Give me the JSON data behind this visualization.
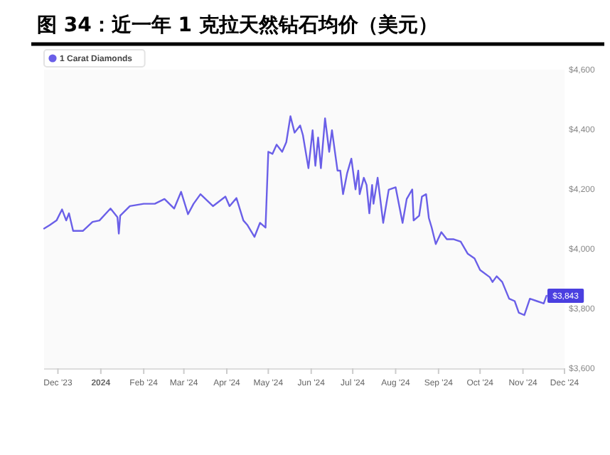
{
  "chart_data": {
    "type": "line",
    "title": "图 34：近一年 1 克拉天然钻石均价（美元）",
    "x": [
      "2023-11-21",
      "2023-11-25",
      "2023-11-30",
      "2023-12-04",
      "2023-12-07",
      "2023-12-09",
      "2023-12-12",
      "2023-12-19",
      "2023-12-26",
      "2023-12-31",
      "2024-01-08",
      "2024-01-13",
      "2024-01-14",
      "2024-01-15",
      "2024-01-22",
      "2024-02-01",
      "2024-02-09",
      "2024-02-16",
      "2024-02-23",
      "2024-02-28",
      "2024-03-04",
      "2024-03-08",
      "2024-03-13",
      "2024-03-22",
      "2024-03-31",
      "2024-04-03",
      "2024-04-08",
      "2024-04-13",
      "2024-04-16",
      "2024-04-21",
      "2024-04-25",
      "2024-04-29",
      "2024-05-01",
      "2024-05-04",
      "2024-05-07",
      "2024-05-11",
      "2024-05-14",
      "2024-05-17",
      "2024-05-20",
      "2024-05-24",
      "2024-05-26",
      "2024-05-30",
      "2024-06-02",
      "2024-06-04",
      "2024-06-06",
      "2024-06-08",
      "2024-06-11",
      "2024-06-14",
      "2024-06-16",
      "2024-06-20",
      "2024-06-22",
      "2024-06-24",
      "2024-06-27",
      "2024-06-30",
      "2024-07-03",
      "2024-07-05",
      "2024-07-06",
      "2024-07-09",
      "2024-07-11",
      "2024-07-13",
      "2024-07-15",
      "2024-07-16",
      "2024-07-19",
      "2024-07-23",
      "2024-07-27",
      "2024-08-01",
      "2024-08-06",
      "2024-08-09",
      "2024-08-13",
      "2024-08-14",
      "2024-08-18",
      "2024-08-20",
      "2024-08-23",
      "2024-08-25",
      "2024-08-27",
      "2024-08-30",
      "2024-09-03",
      "2024-09-07",
      "2024-09-12",
      "2024-09-17",
      "2024-09-22",
      "2024-09-27",
      "2024-10-01",
      "2024-10-08",
      "2024-10-10",
      "2024-10-13",
      "2024-10-17",
      "2024-10-22",
      "2024-10-26",
      "2024-10-29",
      "2024-11-02",
      "2024-11-06",
      "2024-11-11",
      "2024-11-16",
      "2024-11-18"
    ],
    "series": [
      {
        "name": "1 Carat Diamonds",
        "color": "#6a5fe8",
        "values": [
          4068,
          4079,
          4095,
          4132,
          4095,
          4119,
          4060,
          4060,
          4090,
          4095,
          4135,
          4106,
          4051,
          4111,
          4143,
          4151,
          4151,
          4167,
          4135,
          4191,
          4116,
          4151,
          4183,
          4143,
          4175,
          4143,
          4170,
          4095,
          4079,
          4040,
          4087,
          4071,
          4325,
          4318,
          4349,
          4325,
          4357,
          4444,
          4389,
          4413,
          4381,
          4270,
          4397,
          4278,
          4373,
          4270,
          4437,
          4325,
          4397,
          4262,
          4262,
          4183,
          4254,
          4302,
          4199,
          4262,
          4183,
          4238,
          4214,
          4119,
          4214,
          4151,
          4238,
          4087,
          4198,
          4206,
          4087,
          4167,
          4199,
          4095,
          4111,
          4175,
          4183,
          4103,
          4072,
          4016,
          4056,
          4032,
          4032,
          4024,
          3984,
          3968,
          3929,
          3905,
          3889,
          3908,
          3889,
          3833,
          3825,
          3786,
          3778,
          3833,
          3825,
          3817,
          3843
        ],
        "value_labels": [
          null,
          null,
          null,
          null,
          null,
          null,
          null,
          null,
          null,
          null,
          null,
          null,
          null,
          null,
          null,
          null,
          null,
          null,
          null,
          null,
          null,
          null,
          null,
          null,
          null,
          null,
          null,
          null,
          null,
          null,
          null,
          null,
          null,
          null,
          null,
          null,
          null,
          null,
          null,
          null,
          null,
          null,
          null,
          null,
          null,
          null,
          null,
          null,
          null,
          null,
          null,
          null,
          null,
          null,
          null,
          null,
          null,
          null,
          null,
          null,
          null,
          null,
          null,
          null,
          null,
          null,
          null,
          null,
          null,
          null,
          null,
          null,
          null,
          null,
          null,
          null,
          null,
          null,
          null,
          null,
          null,
          null,
          null,
          null,
          null,
          null,
          null,
          null,
          null,
          null,
          null,
          null,
          null,
          null,
          "$3,843"
        ]
      }
    ],
    "xlim": [
      "2023-11-21",
      "2024-12-01"
    ],
    "xticks": [
      {
        "value": "2023-12-01",
        "label": "Dec '23"
      },
      {
        "value": "2024-01-01",
        "label": "2024"
      },
      {
        "value": "2024-02-01",
        "label": "Feb '24"
      },
      {
        "value": "2024-03-01",
        "label": "Mar '24"
      },
      {
        "value": "2024-04-01",
        "label": "Apr '24"
      },
      {
        "value": "2024-05-01",
        "label": "May '24"
      },
      {
        "value": "2024-06-01",
        "label": "Jun '24"
      },
      {
        "value": "2024-07-01",
        "label": "Jul '24"
      },
      {
        "value": "2024-08-01",
        "label": "Aug '24"
      },
      {
        "value": "2024-09-01",
        "label": "Sep '24"
      },
      {
        "value": "2024-10-01",
        "label": "Oct '24"
      },
      {
        "value": "2024-11-01",
        "label": "Nov '24"
      },
      {
        "value": "2024-12-01",
        "label": "Dec '24"
      }
    ],
    "ylim": [
      3600,
      4600
    ],
    "yticks": [
      {
        "value": 3600,
        "label": "$3,600"
      },
      {
        "value": 3800,
        "label": "$3,800"
      },
      {
        "value": 4000,
        "label": "$4,000"
      },
      {
        "value": 4200,
        "label": "$4,200"
      },
      {
        "value": 4400,
        "label": "$4,400"
      },
      {
        "value": 4600,
        "label": "$4,600"
      }
    ],
    "legend": "top left",
    "marker": "none",
    "line_style": "solid"
  }
}
